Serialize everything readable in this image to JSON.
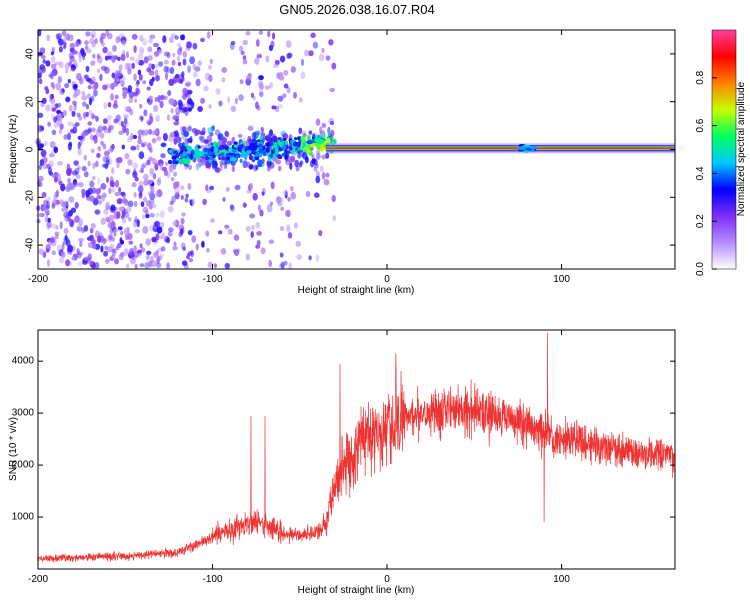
{
  "title": "GN05.2026.038.16.07.R04",
  "chart_data": [
    {
      "type": "heatmap",
      "name": "spectrogram",
      "xlabel": "Height of straight line (km)",
      "ylabel": "Frequency (Hz)",
      "xlim": [
        -200,
        165
      ],
      "ylim": [
        -50,
        50
      ],
      "xticks": [
        "-200",
        "-100",
        "0",
        "100"
      ],
      "yticks": [
        "40",
        "20",
        "0",
        "-20",
        "-40"
      ],
      "colorbar": {
        "label": "Normalized spectral amplitude",
        "range": [
          0,
          1
        ],
        "ticks": [
          "0.0",
          "0.2",
          "0.4",
          "0.6",
          "0.8"
        ],
        "colors": [
          "#ffffff",
          "#b48cff",
          "#7d2ef5",
          "#0000ff",
          "#00c8ff",
          "#00ff60",
          "#c8ff00",
          "#ff8000",
          "#ff0000",
          "#ff40a0"
        ]
      },
      "ridge": {
        "frequency": 0.5,
        "x_start": -35,
        "x_end": 165,
        "amplitude": 0.95,
        "features": [
          {
            "x": -40,
            "frequency": 4,
            "amplitude": 0.5
          },
          {
            "x": -90,
            "frequency": -3,
            "amplitude": 0.4
          },
          {
            "x": 80,
            "frequency": 0.5,
            "amplitude": 0.45
          }
        ]
      },
      "noise_region": {
        "x_start": -200,
        "x_end": -30,
        "amplitude": 0.25
      }
    },
    {
      "type": "line",
      "name": "snr",
      "xlabel": "Height of straight line (km)",
      "ylabel": "SNR (10 * v/v)",
      "xlim": [
        -200,
        165
      ],
      "ylim": [
        0,
        4600
      ],
      "xticks": [
        "-200",
        "-100",
        "0",
        "100"
      ],
      "yticks": [
        "4000",
        "3000",
        "2000",
        "1000"
      ],
      "color": "#ee3333",
      "envelope": {
        "x": [
          -200,
          -180,
          -150,
          -120,
          -100,
          -90,
          -80,
          -70,
          -60,
          -50,
          -40,
          -35,
          -30,
          -25,
          -20,
          -15,
          -10,
          -5,
          0,
          10,
          20,
          30,
          40,
          50,
          60,
          70,
          80,
          90,
          95,
          100,
          120,
          140,
          165
        ],
        "y": [
          200,
          220,
          250,
          320,
          600,
          750,
          900,
          850,
          700,
          650,
          700,
          900,
          1600,
          2000,
          2100,
          2500,
          2700,
          2500,
          2600,
          2900,
          3050,
          3050,
          3100,
          3050,
          3000,
          2900,
          2750,
          2600,
          2500,
          2550,
          2400,
          2250,
          2150
        ]
      },
      "spikes": [
        {
          "x": -78,
          "y": 2950
        },
        {
          "x": -70,
          "y": 2950
        },
        {
          "x": -27,
          "y": 3950
        },
        {
          "x": 5,
          "y": 4150
        },
        {
          "x": 92,
          "y": 4550
        },
        {
          "x": 90,
          "y": 900
        }
      ]
    }
  ]
}
